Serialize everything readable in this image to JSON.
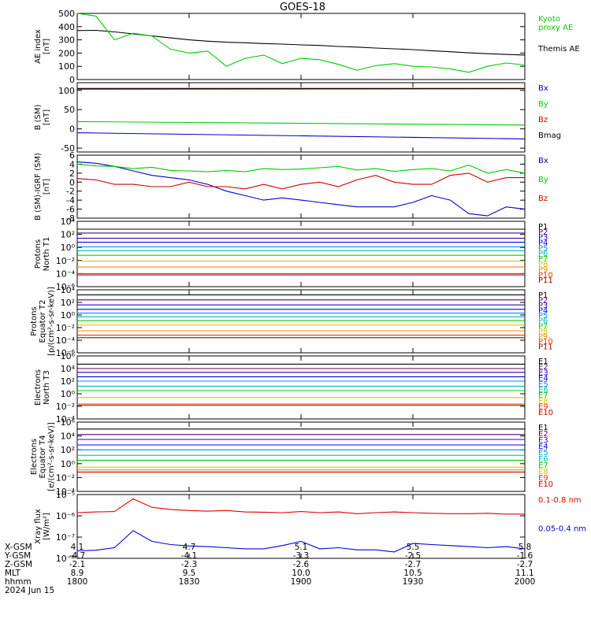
{
  "title": "GOES-18",
  "date_label": "2024 Jun 15",
  "bottom_rows": [
    {
      "label": "X-GSM",
      "values": [
        "4.1",
        "4.7",
        "5.1",
        "5.5",
        "5.8"
      ]
    },
    {
      "label": "Y-GSM",
      "values": [
        "-4.7",
        "-4.1",
        "-3.3",
        "-2.5",
        "-1.6"
      ]
    },
    {
      "label": "Z-GSM",
      "values": [
        "-2.1",
        "-2.3",
        "-2.6",
        "-2.7",
        "-2.7"
      ]
    },
    {
      "label": "MLT",
      "values": [
        "8.9",
        "9.5",
        "10.0",
        "10.5",
        "11.1"
      ]
    },
    {
      "label": "hhmm",
      "values": [
        "1800",
        "1830",
        "1900",
        "1930",
        "2000"
      ]
    }
  ],
  "chart_data": [
    {
      "type": "line",
      "ylabel": "AE index\n[nT]",
      "ylim": [
        0,
        500
      ],
      "yticks": [
        "500",
        "400",
        "300",
        "200",
        "100",
        "0"
      ],
      "ytick_values": [
        500,
        400,
        300,
        200,
        100,
        0
      ],
      "grid": false,
      "x": [
        1800,
        1805,
        1810,
        1815,
        1820,
        1825,
        1830,
        1835,
        1840,
        1845,
        1850,
        1855,
        1900,
        1905,
        1910,
        1915,
        1920,
        1925,
        1930,
        1935,
        1940,
        1945,
        1950,
        1955,
        2000
      ],
      "series": [
        {
          "name": "Themis AE",
          "color": "#000000",
          "values": [
            370,
            372,
            360,
            345,
            330,
            315,
            300,
            290,
            282,
            278,
            272,
            268,
            262,
            258,
            250,
            245,
            238,
            232,
            226,
            218,
            210,
            202,
            195,
            190,
            185
          ]
        },
        {
          "name": "Kyoto proxy AE",
          "color": "#00cc00",
          "values": [
            500,
            480,
            300,
            350,
            330,
            230,
            200,
            215,
            100,
            160,
            185,
            120,
            160,
            150,
            115,
            70,
            105,
            120,
            100,
            95,
            80,
            55,
            100,
            125,
            110
          ]
        }
      ],
      "legend": [
        {
          "text": "Kyoto\nproxy AE",
          "color": "#00cc00"
        },
        {
          "text": "Themis AE",
          "color": "#000000"
        }
      ]
    },
    {
      "type": "line",
      "ylabel": "B (SM)\n[nT]",
      "ylim": [
        -60,
        120
      ],
      "yticks": [
        "100",
        "50",
        "0",
        "-50"
      ],
      "ytick_values": [
        100,
        50,
        0,
        -50
      ],
      "grid": false,
      "x": [
        1800,
        2000
      ],
      "series": [
        {
          "name": "Bx",
          "color": "#0000cc",
          "values": [
            -10,
            -26
          ]
        },
        {
          "name": "By",
          "color": "#00cc00",
          "values": [
            19,
            10
          ]
        },
        {
          "name": "Bz",
          "color": "#cc0000",
          "values": [
            103,
            104
          ]
        },
        {
          "name": "Bmag",
          "color": "#000000",
          "values": [
            105,
            105
          ]
        }
      ],
      "legend": [
        {
          "text": "Bx",
          "color": "#0000cc"
        },
        {
          "text": "By",
          "color": "#00cc00"
        },
        {
          "text": "Bz",
          "color": "#cc0000"
        },
        {
          "text": "Bmag",
          "color": "#000000"
        }
      ]
    },
    {
      "type": "line",
      "ylabel": "B (SM)-IGRF (SM)\n[nT]",
      "ylim": [
        -8,
        6
      ],
      "yticks": [
        "6",
        "4",
        "2",
        "0",
        "-2",
        "-4",
        "-6",
        "-8"
      ],
      "ytick_values": [
        6,
        4,
        2,
        0,
        -2,
        -4,
        -6,
        -8
      ],
      "grid": false,
      "x": [
        1800,
        1805,
        1810,
        1815,
        1820,
        1825,
        1830,
        1835,
        1840,
        1845,
        1850,
        1855,
        1900,
        1905,
        1910,
        1915,
        1920,
        1925,
        1930,
        1935,
        1940,
        1945,
        1950,
        1955,
        2000
      ],
      "series": [
        {
          "name": "Bx",
          "color": "#0000cc",
          "values": [
            4.5,
            4.2,
            3.5,
            2.5,
            1.5,
            1.0,
            0.5,
            -0.5,
            -2,
            -3,
            -4,
            -3.5,
            -4,
            -4.5,
            -5,
            -5.5,
            -5.5,
            -5.5,
            -4.5,
            -3,
            -4,
            -7,
            -7.5,
            -5.5,
            -6
          ]
        },
        {
          "name": "By",
          "color": "#00cc00",
          "values": [
            4.0,
            3.6,
            3.5,
            3.0,
            3.3,
            2.6,
            2.5,
            2.3,
            2.6,
            2.3,
            3.0,
            2.8,
            2.9,
            3.2,
            3.5,
            2.7,
            3.0,
            2.4,
            2.8,
            3.0,
            2.5,
            3.8,
            2.0,
            2.8,
            2.0
          ]
        },
        {
          "name": "Bz",
          "color": "#cc0000",
          "values": [
            0.8,
            0.5,
            -0.5,
            -0.5,
            -1,
            -1,
            0,
            -1,
            -1,
            -1.5,
            -0.5,
            -1.5,
            -0.5,
            0,
            -1,
            0.5,
            1.5,
            0,
            -0.5,
            -0.5,
            1.5,
            2,
            0,
            1,
            1
          ]
        }
      ],
      "legend": [
        {
          "text": "Bx",
          "color": "#0000cc"
        },
        {
          "text": "By",
          "color": "#00cc00"
        },
        {
          "text": "Bz",
          "color": "#cc0000"
        }
      ]
    },
    {
      "type": "line",
      "yscale": "log",
      "ylabel": "Protons\nNorth T1",
      "ylim": [
        -6,
        4
      ],
      "yticks": [
        "10⁴",
        "10²",
        "10⁰",
        "10⁻²",
        "10⁻⁴",
        "10⁻⁶"
      ],
      "ytick_values": [
        4,
        2,
        0,
        -2,
        -4,
        -6
      ],
      "grid": false,
      "x": [
        1800,
        2000
      ],
      "series": [
        {
          "name": "P1",
          "color": "#000000",
          "values": [
            2.8,
            2.8
          ]
        },
        {
          "name": "P2",
          "color": "#550066",
          "values": [
            2.2,
            2.2
          ]
        },
        {
          "name": "P3",
          "color": "#3300aa",
          "values": [
            1.4,
            1.4
          ]
        },
        {
          "name": "P4",
          "color": "#0000ff",
          "values": [
            0.8,
            0.8
          ]
        },
        {
          "name": "P5",
          "color": "#0088ff",
          "values": [
            0.1,
            0.1
          ]
        },
        {
          "name": "P6",
          "color": "#00bbbb",
          "values": [
            -0.5,
            -0.5
          ]
        },
        {
          "name": "P7",
          "color": "#00cc00",
          "values": [
            -1.2,
            -1.2
          ]
        },
        {
          "name": "P8",
          "color": "#cccc00",
          "values": [
            -2.1,
            -2.1
          ]
        },
        {
          "name": "P9",
          "color": "#ff8800",
          "values": [
            -3.0,
            -3.0
          ]
        },
        {
          "name": "P10",
          "color": "#ff3300",
          "values": [
            -4.0,
            -4.0
          ]
        },
        {
          "name": "P11",
          "color": "#aa0000",
          "values": [
            -4.2,
            -4.2
          ]
        }
      ],
      "legend": [
        {
          "text": "P1",
          "color": "#000000"
        },
        {
          "text": "P2",
          "color": "#550066"
        },
        {
          "text": "P3",
          "color": "#3300aa"
        },
        {
          "text": "P4",
          "color": "#0000ff"
        },
        {
          "text": "P5",
          "color": "#0088ff"
        },
        {
          "text": "P6",
          "color": "#00bbbb"
        },
        {
          "text": "P7",
          "color": "#00cc00"
        },
        {
          "text": "P8",
          "color": "#cccc00"
        },
        {
          "text": "P9",
          "color": "#ff8800"
        },
        {
          "text": "P10",
          "color": "#ff3300"
        },
        {
          "text": "P11",
          "color": "#aa0000"
        }
      ]
    },
    {
      "type": "line",
      "yscale": "log",
      "ylabel": "Protons\nEquator T2\n[p/(cm²-s-sr-keV)]",
      "ylim": [
        -6,
        4
      ],
      "yticks": [
        "10⁴",
        "10²",
        "10⁰",
        "10⁻²",
        "10⁻⁴",
        "10⁻⁶"
      ],
      "ytick_values": [
        4,
        2,
        0,
        -2,
        -4,
        -6
      ],
      "grid": false,
      "x": [
        1800,
        2000
      ],
      "series": [
        {
          "name": "P1",
          "color": "#000000",
          "values": [
            3.2,
            3.2
          ]
        },
        {
          "name": "P2",
          "color": "#550066",
          "values": [
            2.4,
            2.4
          ]
        },
        {
          "name": "P3",
          "color": "#3300aa",
          "values": [
            1.6,
            1.6
          ]
        },
        {
          "name": "P4",
          "color": "#0000ff",
          "values": [
            0.9,
            0.9
          ]
        },
        {
          "name": "P5",
          "color": "#0088ff",
          "values": [
            0.3,
            0.3
          ]
        },
        {
          "name": "P6",
          "color": "#00bbbb",
          "values": [
            -0.3,
            -0.3
          ]
        },
        {
          "name": "P7",
          "color": "#00cc00",
          "values": [
            -0.9,
            -0.9
          ]
        },
        {
          "name": "P8",
          "color": "#cccc00",
          "values": [
            -1.6,
            -1.6
          ]
        },
        {
          "name": "P9",
          "color": "#ff8800",
          "values": [
            -2.5,
            -2.5
          ]
        },
        {
          "name": "P10",
          "color": "#ff3300",
          "values": [
            -3.2,
            -3.2
          ]
        },
        {
          "name": "P11",
          "color": "#aa0000",
          "values": [
            -3.6,
            -3.6
          ]
        }
      ],
      "legend": [
        {
          "text": "P1",
          "color": "#000000"
        },
        {
          "text": "P2",
          "color": "#550066"
        },
        {
          "text": "P3",
          "color": "#3300aa"
        },
        {
          "text": "P4",
          "color": "#0000ff"
        },
        {
          "text": "P5",
          "color": "#0088ff"
        },
        {
          "text": "P6",
          "color": "#00bbbb"
        },
        {
          "text": "P7",
          "color": "#00cc00"
        },
        {
          "text": "P8",
          "color": "#cccc00"
        },
        {
          "text": "P9",
          "color": "#ff8800"
        },
        {
          "text": "P10",
          "color": "#ff3300"
        },
        {
          "text": "P11",
          "color": "#aa0000"
        }
      ]
    },
    {
      "type": "line",
      "yscale": "log",
      "ylabel": "Electrons\nNorth T3",
      "ylim": [
        -4,
        6
      ],
      "yticks": [
        "10⁶",
        "10⁴",
        "10²",
        "10⁰",
        "10⁻²",
        "10⁻⁴"
      ],
      "ytick_values": [
        6,
        4,
        2,
        0,
        -2,
        -4
      ],
      "grid": false,
      "x": [
        1800,
        2000
      ],
      "series": [
        {
          "name": "E1",
          "color": "#000000",
          "values": [
            4.7,
            4.7
          ]
        },
        {
          "name": "E2",
          "color": "#550066",
          "values": [
            4.0,
            4.0
          ]
        },
        {
          "name": "E3",
          "color": "#3300aa",
          "values": [
            3.4,
            3.4
          ]
        },
        {
          "name": "E4",
          "color": "#0000ff",
          "values": [
            2.7,
            2.7
          ]
        },
        {
          "name": "E5",
          "color": "#0088ff",
          "values": [
            2.0,
            2.0
          ]
        },
        {
          "name": "E6",
          "color": "#00bbbb",
          "values": [
            1.2,
            1.2
          ]
        },
        {
          "name": "E7",
          "color": "#00cc00",
          "values": [
            0.5,
            0.5
          ]
        },
        {
          "name": "E8",
          "color": "#cccc00",
          "values": [
            -0.6,
            -0.6
          ]
        },
        {
          "name": "E9",
          "color": "#ff8800",
          "values": [
            -1.6,
            -1.6
          ]
        },
        {
          "name": "E10",
          "color": "#cc0000",
          "values": [
            -1.8,
            -1.8
          ]
        }
      ],
      "legend": [
        {
          "text": "E1",
          "color": "#000000"
        },
        {
          "text": "E2",
          "color": "#550066"
        },
        {
          "text": "E3",
          "color": "#3300aa"
        },
        {
          "text": "E4",
          "color": "#0000ff"
        },
        {
          "text": "E5",
          "color": "#0088ff"
        },
        {
          "text": "E6",
          "color": "#00bbbb"
        },
        {
          "text": "E7",
          "color": "#00cc00"
        },
        {
          "text": "E8",
          "color": "#cccc00"
        },
        {
          "text": "E9",
          "color": "#ff3300"
        },
        {
          "text": "E10",
          "color": "#cc0000"
        }
      ]
    },
    {
      "type": "line",
      "yscale": "log",
      "ylabel": "Electrons\nEquator T4\n[e/(cm²-s-sr-keV)]",
      "ylim": [
        -4,
        6
      ],
      "yticks": [
        "10⁶",
        "10⁴",
        "10²",
        "10⁰",
        "10⁻²",
        "10⁻⁴"
      ],
      "ytick_values": [
        6,
        4,
        2,
        0,
        -2,
        -4
      ],
      "grid": false,
      "x": [
        1800,
        2000
      ],
      "series": [
        {
          "name": "E1",
          "color": "#000000",
          "values": [
            5.0,
            5.0
          ]
        },
        {
          "name": "E2",
          "color": "#550066",
          "values": [
            4.2,
            4.2
          ]
        },
        {
          "name": "E3",
          "color": "#3300aa",
          "values": [
            3.5,
            3.5
          ]
        },
        {
          "name": "E4",
          "color": "#0000ff",
          "values": [
            2.7,
            2.7
          ]
        },
        {
          "name": "E5",
          "color": "#0088ff",
          "values": [
            2.0,
            2.0
          ]
        },
        {
          "name": "E6",
          "color": "#00bbbb",
          "values": [
            1.2,
            1.2
          ]
        },
        {
          "name": "E7",
          "color": "#00cc00",
          "values": [
            0.5,
            0.5
          ]
        },
        {
          "name": "E8",
          "color": "#cccc00",
          "values": [
            -0.5,
            -0.5
          ]
        },
        {
          "name": "E9",
          "color": "#ff8800",
          "values": [
            -0.9,
            -0.9
          ]
        },
        {
          "name": "E10",
          "color": "#cc0000",
          "values": [
            -1.2,
            -1.2
          ]
        }
      ],
      "legend": [
        {
          "text": "E1",
          "color": "#000000"
        },
        {
          "text": "E2",
          "color": "#550066"
        },
        {
          "text": "E3",
          "color": "#3300aa"
        },
        {
          "text": "E4",
          "color": "#0000ff"
        },
        {
          "text": "E5",
          "color": "#0088ff"
        },
        {
          "text": "E6",
          "color": "#00bbbb"
        },
        {
          "text": "E7",
          "color": "#00cc00"
        },
        {
          "text": "E8",
          "color": "#cccc00"
        },
        {
          "text": "E9",
          "color": "#ff3300"
        },
        {
          "text": "E10",
          "color": "#cc0000"
        }
      ]
    },
    {
      "type": "line",
      "yscale": "log",
      "ylabel": "Xray flux\n[W/m²]",
      "ylim": [
        -8,
        -5
      ],
      "yticks": [
        "10⁻⁵",
        "10⁻⁶",
        "10⁻⁷",
        "10⁻⁸"
      ],
      "ytick_values": [
        -5,
        -6,
        -7,
        -8
      ],
      "grid": false,
      "x": [
        1800,
        1805,
        1810,
        1815,
        1820,
        1825,
        1830,
        1835,
        1840,
        1845,
        1850,
        1855,
        1900,
        1905,
        1910,
        1915,
        1920,
        1925,
        1930,
        1935,
        1940,
        1945,
        1950,
        1955,
        2000
      ],
      "series": [
        {
          "name": "0.1-0.8 nm",
          "color": "#dd0000",
          "values": [
            -5.85,
            -5.82,
            -5.8,
            -5.2,
            -5.6,
            -5.7,
            -5.75,
            -5.78,
            -5.75,
            -5.82,
            -5.83,
            -5.85,
            -5.8,
            -5.85,
            -5.82,
            -5.9,
            -5.85,
            -5.82,
            -5.85,
            -5.88,
            -5.9,
            -5.9,
            -5.88,
            -5.92,
            -5.92
          ]
        },
        {
          "name": "0.05-0.4 nm",
          "color": "#0000dd",
          "values": [
            -7.65,
            -7.62,
            -7.5,
            -6.7,
            -7.2,
            -7.35,
            -7.42,
            -7.45,
            -7.5,
            -7.55,
            -7.55,
            -7.4,
            -7.2,
            -7.55,
            -7.5,
            -7.6,
            -7.6,
            -7.7,
            -7.3,
            -7.35,
            -7.4,
            -7.45,
            -7.5,
            -7.45,
            -7.55
          ]
        }
      ],
      "legend": [
        {
          "text": "0.1-0.8 nm",
          "color": "#dd0000"
        },
        {
          "text": "0.05-0.4 nm",
          "color": "#0000dd"
        }
      ]
    }
  ]
}
